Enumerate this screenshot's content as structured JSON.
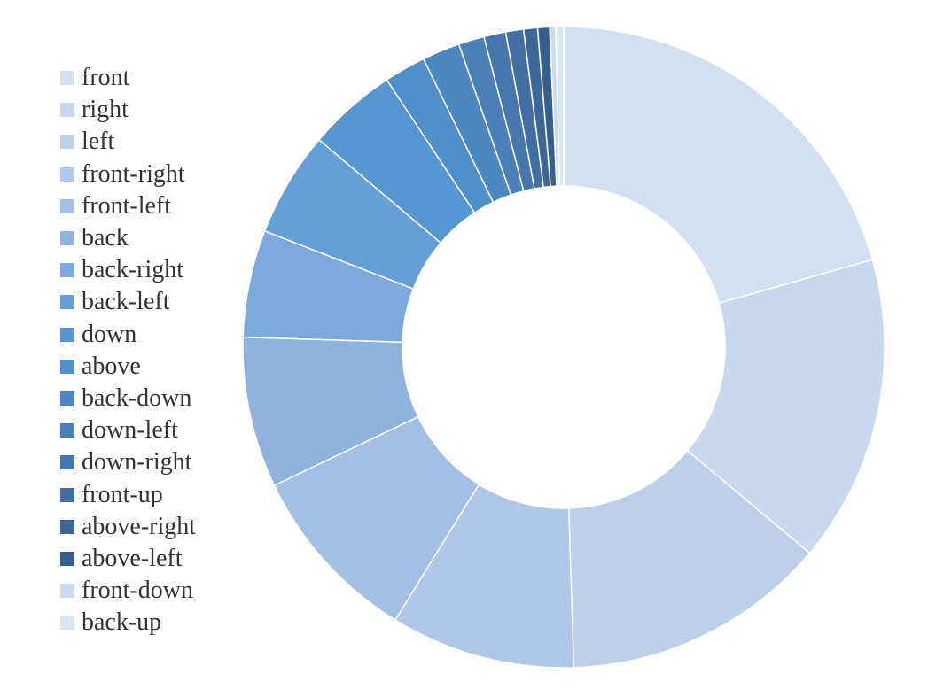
{
  "chart_data": {
    "type": "pie",
    "variant": "donut",
    "title": "",
    "legend_position": "left",
    "start_angle_deg": 0,
    "direction": "clockwise",
    "slices": [
      {
        "label": "front",
        "value": 20.6,
        "color": "#d3e0f2"
      },
      {
        "label": "right",
        "value": 15.5,
        "color": "#c8d8ef"
      },
      {
        "label": "left",
        "value": 13.4,
        "color": "#bdd0ea"
      },
      {
        "label": "front-right",
        "value": 9.3,
        "color": "#b0c8e8"
      },
      {
        "label": "front-left",
        "value": 9.1,
        "color": "#a3bfe3"
      },
      {
        "label": "back",
        "value": 7.6,
        "color": "#8fb3de"
      },
      {
        "label": "back-right",
        "value": 5.4,
        "color": "#7ea9dc"
      },
      {
        "label": "back-left",
        "value": 5.3,
        "color": "#669fd7"
      },
      {
        "label": "down",
        "value": 4.5,
        "color": "#5896d2"
      },
      {
        "label": "above",
        "value": 2.1,
        "color": "#528ec9"
      },
      {
        "label": "back-down",
        "value": 1.9,
        "color": "#4c87c2"
      },
      {
        "label": "down-left",
        "value": 1.3,
        "color": "#4a7fb7"
      },
      {
        "label": "down-right",
        "value": 1.1,
        "color": "#4677ac"
      },
      {
        "label": "front-up",
        "value": 0.9,
        "color": "#426fa1"
      },
      {
        "label": "above-right",
        "value": 0.7,
        "color": "#3e6797"
      },
      {
        "label": "above-left",
        "value": 0.6,
        "color": "#375e8c"
      },
      {
        "label": "front-down",
        "value": 0.3,
        "color": "#ccdaf0"
      },
      {
        "label": "back-up",
        "value": 0.4,
        "color": "#d9e4f5"
      }
    ]
  }
}
